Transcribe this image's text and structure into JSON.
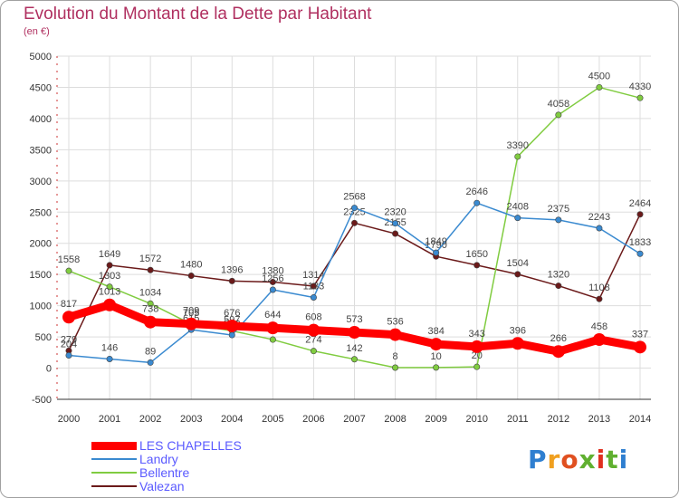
{
  "title": "Evolution du Montant de la Dette par Habitant",
  "subtitle": "(en €)",
  "logo": {
    "text": "Proxiti",
    "colors": [
      "#2f7fd0",
      "#f0a020",
      "#e05020",
      "#60b030",
      "#e03020",
      "#60b030",
      "#2f7fd0"
    ]
  },
  "chart_data": {
    "type": "line",
    "x": [
      2000,
      2001,
      2002,
      2003,
      2004,
      2005,
      2006,
      2007,
      2008,
      2009,
      2010,
      2011,
      2012,
      2013,
      2014
    ],
    "ylim": [
      -500,
      5000
    ],
    "yticks": [
      -500,
      0,
      500,
      1000,
      1500,
      2000,
      2500,
      3000,
      3500,
      4000,
      4500,
      5000
    ],
    "grid": true,
    "legend_position": "bottom-left",
    "series": [
      {
        "name": "Valezan",
        "color": "#6b1a1a",
        "values": [
          279,
          1649,
          1572,
          1480,
          1396,
          1380,
          1314,
          2325,
          2155,
          1790,
          1650,
          1504,
          1320,
          1108,
          2464
        ]
      },
      {
        "name": "Bellentre",
        "color": "#80cc40",
        "values": [
          1558,
          1303,
          1034,
          705,
          597,
          457,
          274,
          142,
          8,
          10,
          20,
          3390,
          4058,
          4500,
          4330
        ]
      },
      {
        "name": "Landry",
        "color": "#3a8ad0",
        "values": [
          204,
          146,
          89,
          615,
          530,
          1256,
          1133,
          2568,
          2320,
          1849,
          2646,
          2408,
          2375,
          2243,
          1833
        ]
      },
      {
        "name": "LES CHAPELLES",
        "color": "#ff0000",
        "values": [
          817,
          1013,
          738,
          709,
          676,
          644,
          608,
          573,
          536,
          384,
          343,
          396,
          266,
          458,
          337
        ]
      }
    ]
  }
}
